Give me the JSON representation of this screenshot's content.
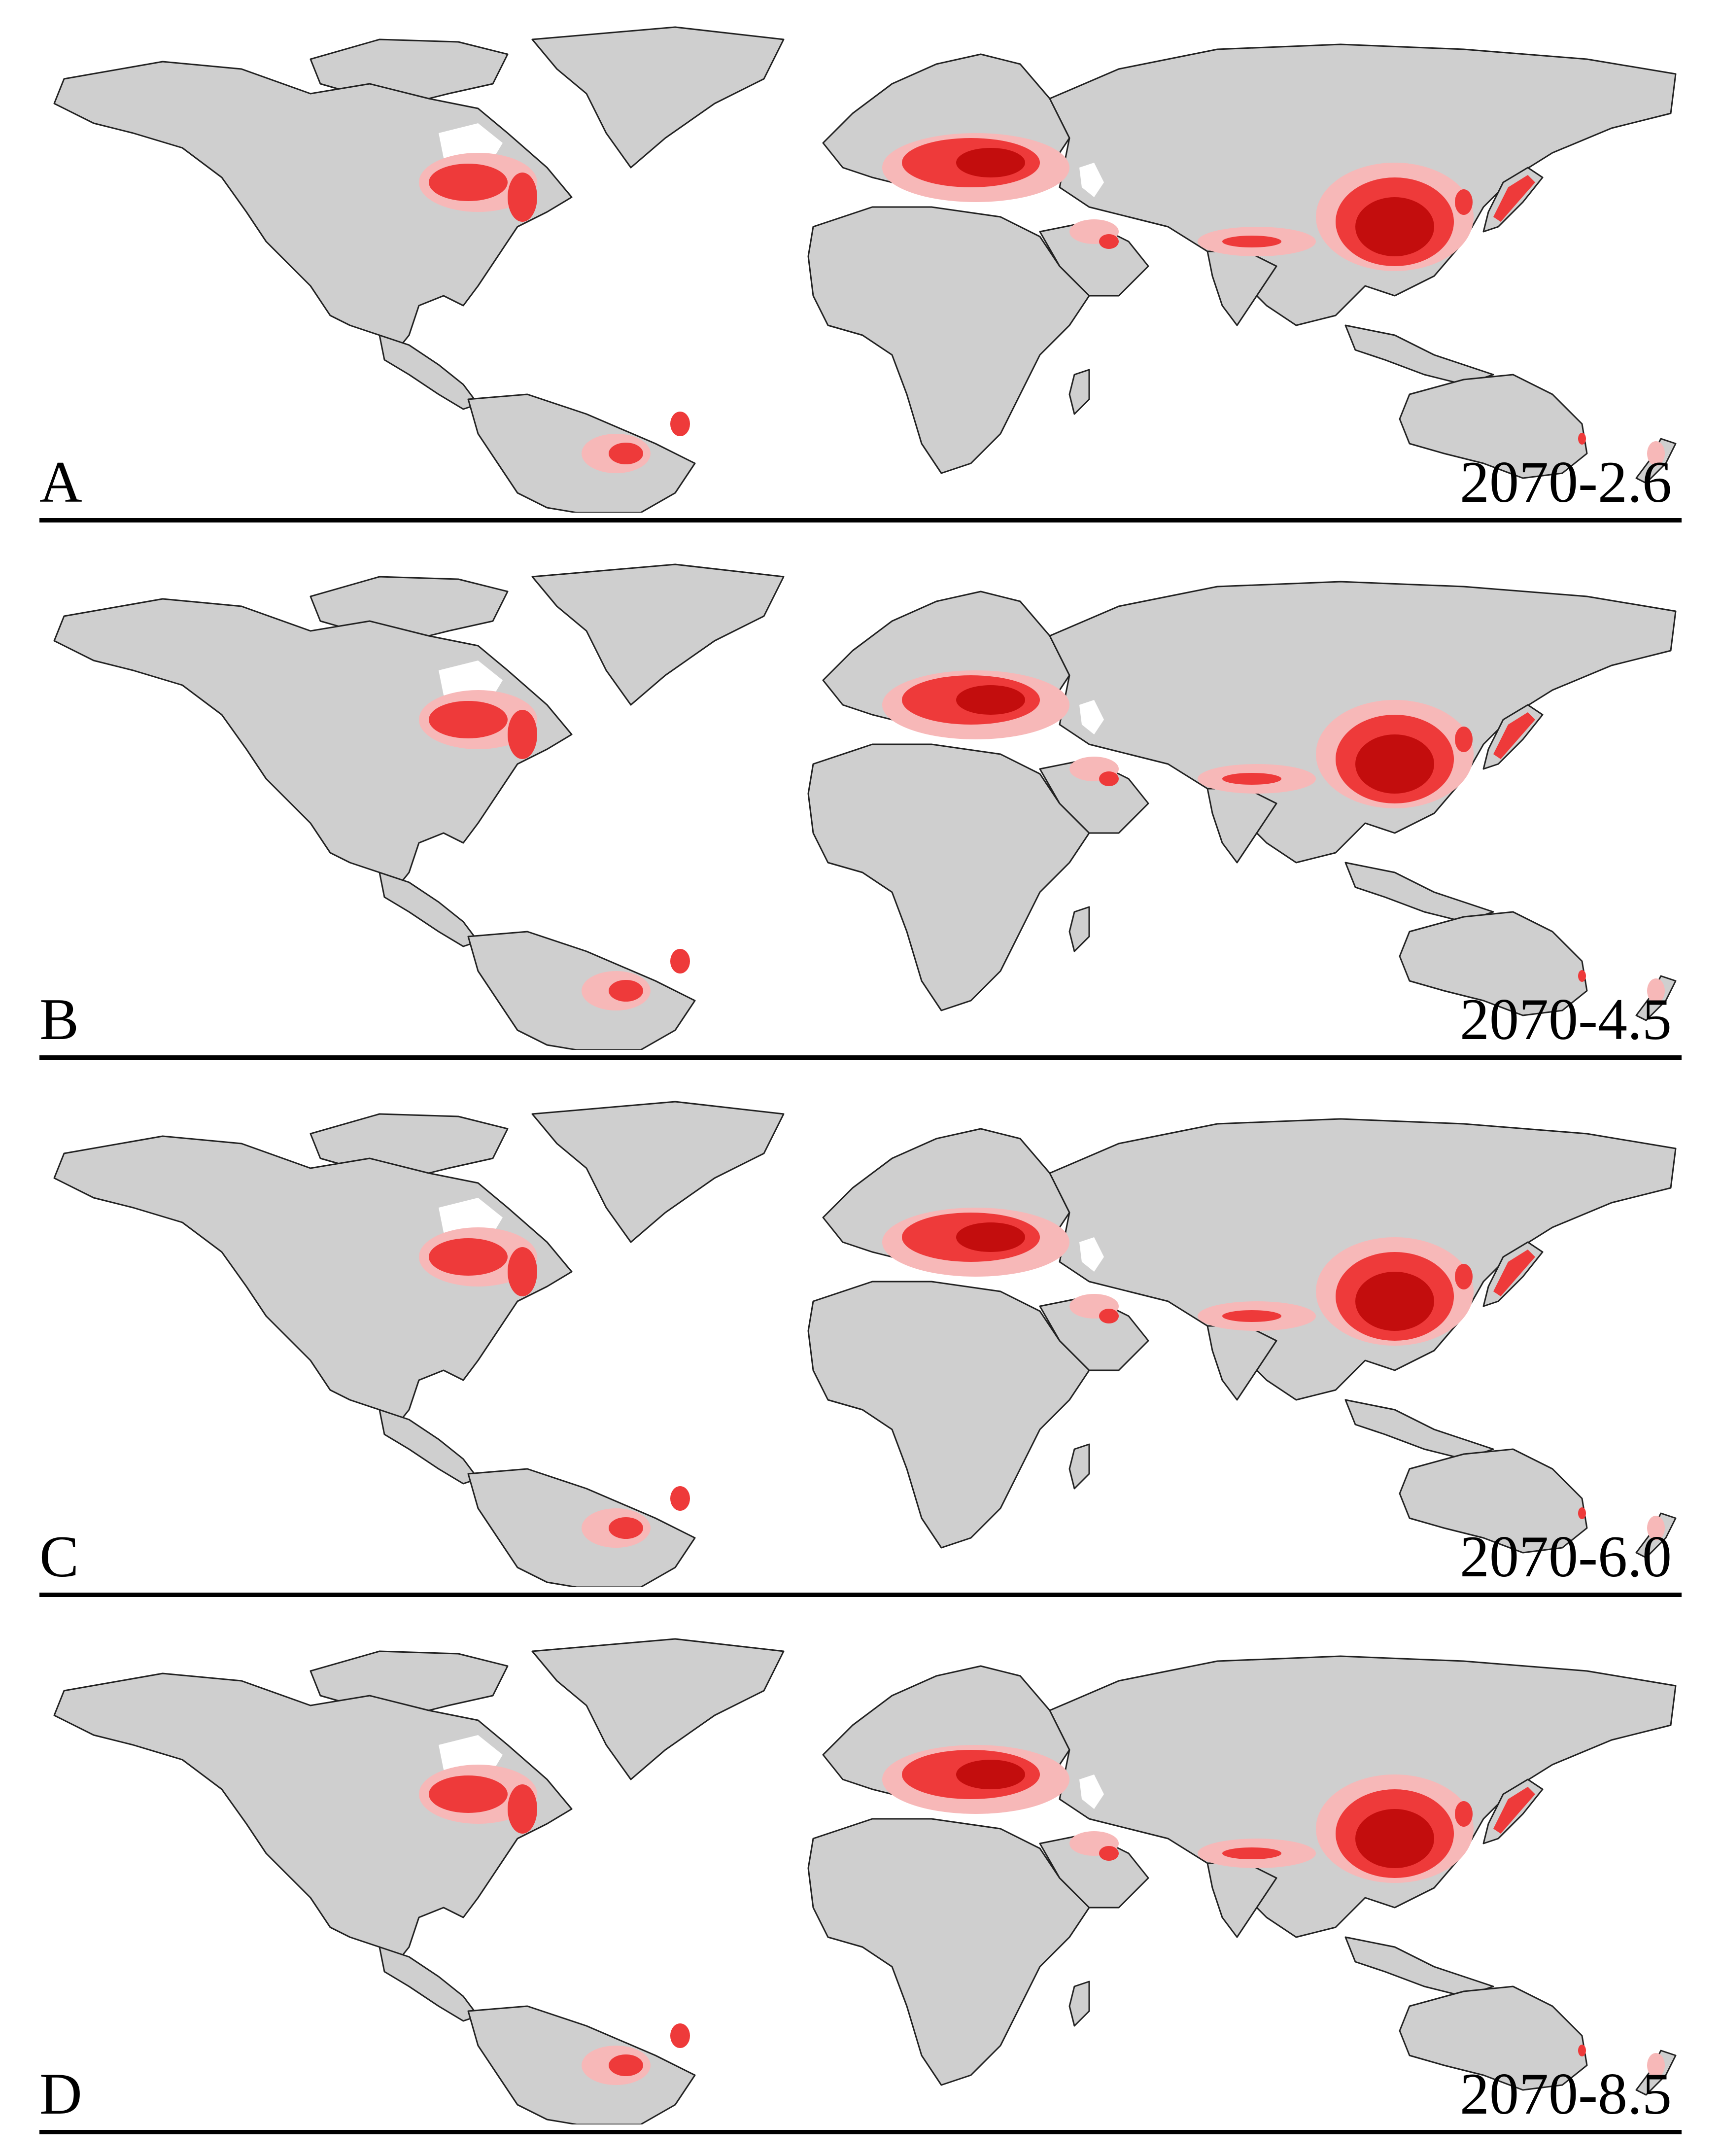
{
  "panels": [
    {
      "letter": "A",
      "scenario": "2070-2.6"
    },
    {
      "letter": "B",
      "scenario": "2070-4.5"
    },
    {
      "letter": "C",
      "scenario": "2070-6.0"
    },
    {
      "letter": "D",
      "scenario": "2070-8.5"
    }
  ],
  "colors": {
    "land": "#cfcfcf",
    "border": "#222222",
    "suitability_low": "#f7b8b8",
    "suitability_medium": "#ee3a3a",
    "suitability_high": "#c30d0d"
  }
}
